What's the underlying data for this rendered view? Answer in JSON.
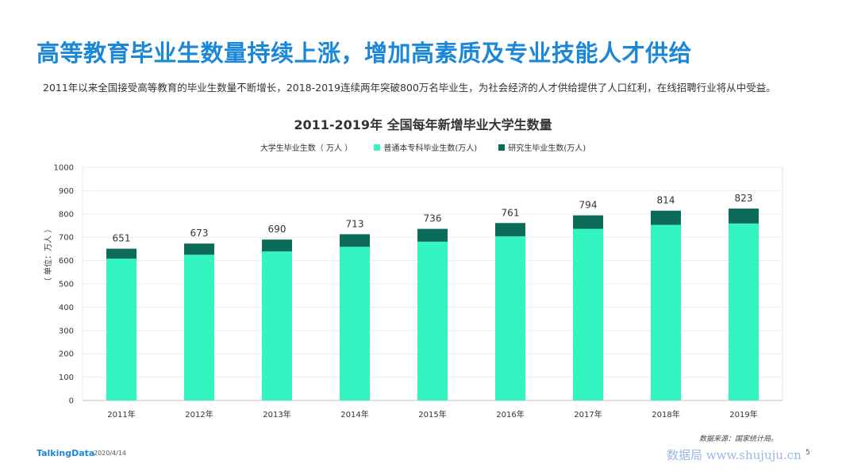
{
  "header": {
    "headline": "高等教育毕业生数量持续上涨，增加高素质及专业技能人才供给",
    "subtitle": "2011年以来全国接受高等教育的毕业生数量不断增长，2018-2019连续两年突破800万名毕业生，为社会经济的人才供给提供了人口红利，在线招聘行业将从中受益。"
  },
  "chart_data": {
    "type": "bar",
    "stacked": true,
    "title": "2011-2019年  全国每年新增毕业大学生数量",
    "ylabel": "（ 单位：万人 ）",
    "xlabel": "",
    "ylim": [
      0,
      1000
    ],
    "yticks": [
      0,
      100,
      200,
      300,
      400,
      500,
      600,
      700,
      800,
      900,
      1000
    ],
    "grid": true,
    "legend_position": "top",
    "categories": [
      "2011年",
      "2012年",
      "2013年",
      "2014年",
      "2015年",
      "2016年",
      "2017年",
      "2018年",
      "2019年"
    ],
    "totals_label": "大学生毕业生数（ 万人 ）",
    "totals": [
      651,
      673,
      690,
      713,
      736,
      761,
      794,
      814,
      823
    ],
    "series": [
      {
        "name": "普通本专科毕业生数(万人)",
        "color": "#33f5c2",
        "values": [
          608,
          625,
          639,
          659,
          681,
          704,
          736,
          753,
          759
        ]
      },
      {
        "name": "研究生毕业生数(万人)",
        "color": "#0d6b59",
        "values": [
          43,
          48,
          51,
          54,
          55,
          57,
          58,
          61,
          64
        ]
      }
    ]
  },
  "footer": {
    "source": "数据来源：国家统计局。",
    "logo": "TalkingData",
    "date": "2020/4/14",
    "watermark": "数据局 www.shujuju.cn",
    "page": "5"
  }
}
